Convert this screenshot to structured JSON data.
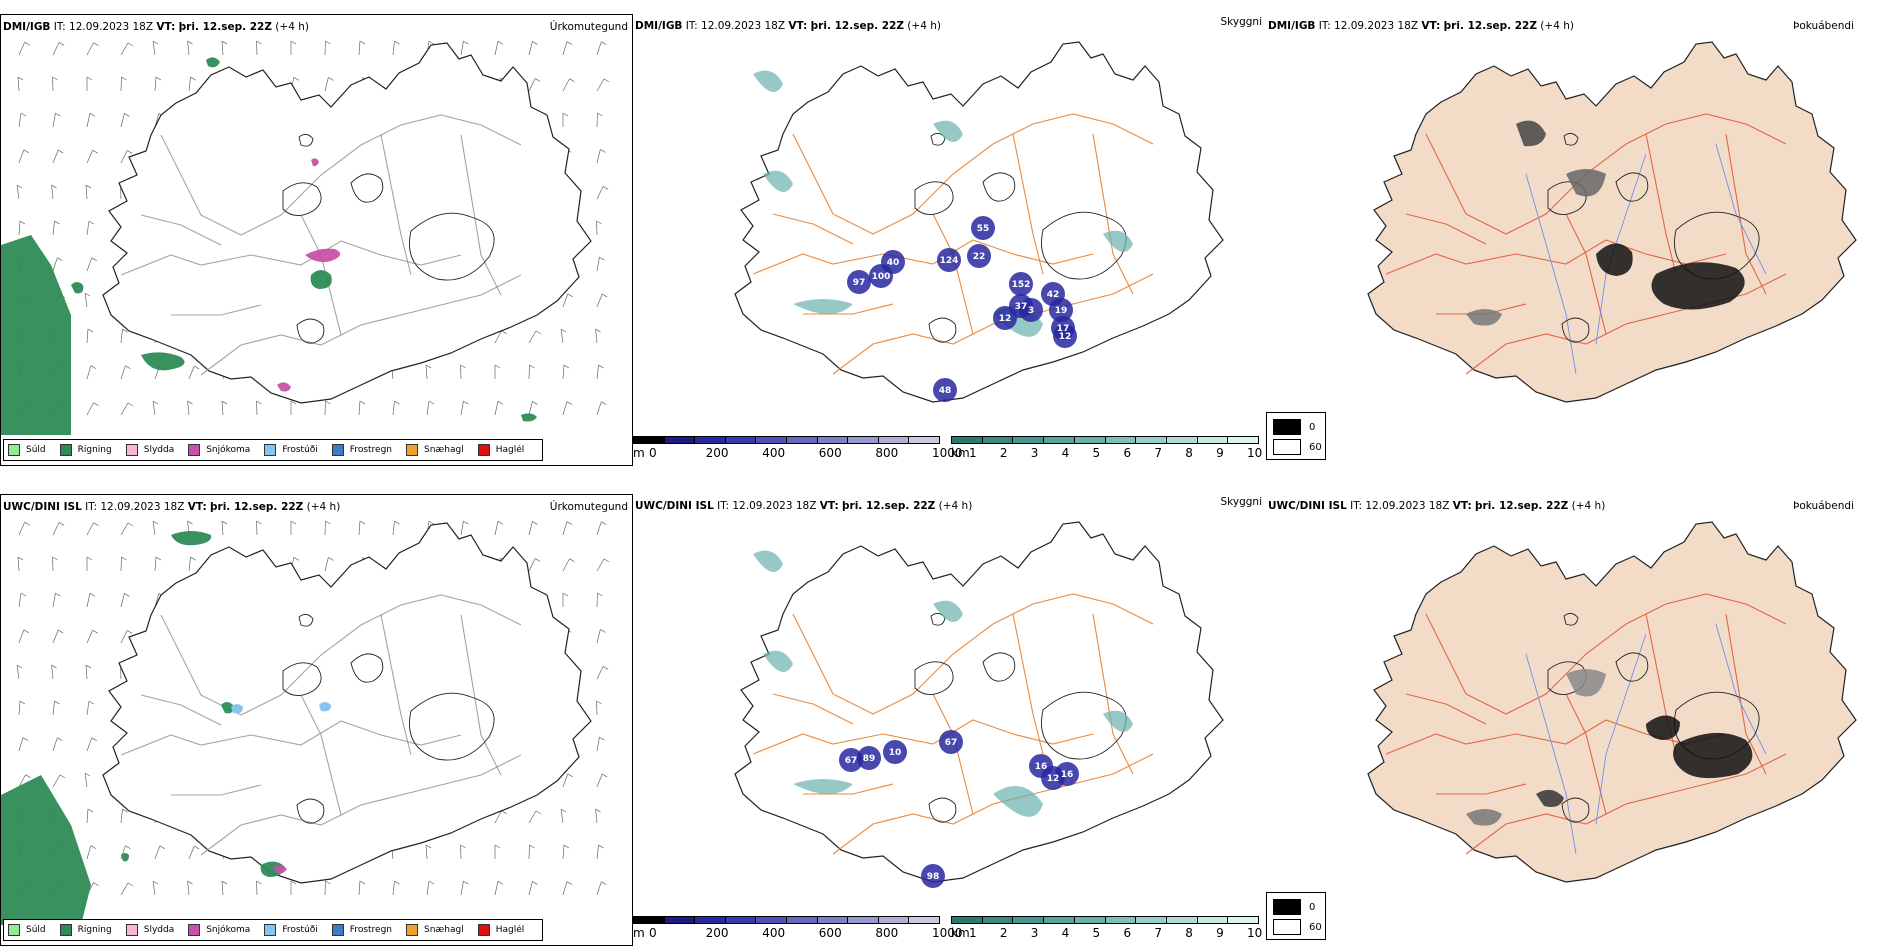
{
  "rows": [
    {
      "source_model": "DMI/IGB",
      "it_label": "IT:",
      "it_time": "12.09.2023 18Z",
      "vt_label": "VT:",
      "vt_time": "þri. 12.sep. 22Z",
      "lead": "(+4 h)",
      "panels": {
        "precip_type": {
          "title": "Úrkomutegund"
        },
        "visibility": {
          "title": "Skyggni",
          "values": [
            "97",
            "100",
            "40",
            "124",
            "22",
            "55",
            "152",
            "37",
            "12",
            "42",
            "3",
            "19",
            "17",
            "12",
            "48"
          ]
        },
        "fog": {
          "title": "Þokuábendi"
        }
      }
    },
    {
      "source_model": "UWC/DINI ISL",
      "it_label": "IT:",
      "it_time": "12.09.2023 18Z",
      "vt_label": "VT:",
      "vt_time": "þri. 12.sep. 22Z",
      "lead": "(+4 h)",
      "panels": {
        "precip_type": {
          "title": "Úrkomutegund"
        },
        "visibility": {
          "title": "Skyggni",
          "values": [
            "67",
            "89",
            "10",
            "67",
            "16",
            "12",
            "16",
            "98"
          ]
        },
        "fog": {
          "title": "Þokuábendi"
        }
      }
    }
  ],
  "precip_legend": [
    {
      "label": "Súld",
      "color": "#90ee90"
    },
    {
      "label": "Rigning",
      "color": "#2e8b57"
    },
    {
      "label": "Slydda",
      "color": "#f4b6d2"
    },
    {
      "label": "Snjókoma",
      "color": "#c850a8"
    },
    {
      "label": "Frostúði",
      "color": "#87c5f0"
    },
    {
      "label": "Frostregn",
      "color": "#3a7cc8"
    },
    {
      "label": "Snæhagl",
      "color": "#f0a030"
    },
    {
      "label": "Haglél",
      "color": "#e01010"
    }
  ],
  "height_scale": {
    "unit": "m",
    "ticks": [
      "0",
      "200",
      "400",
      "600",
      "800",
      "1000"
    ],
    "colors": [
      "#000000",
      "#1a1a80",
      "#2828a0",
      "#3a3ab0",
      "#5050b8",
      "#6868c0",
      "#8080c8",
      "#9898d0",
      "#b0b0d8",
      "#c8c8e0"
    ]
  },
  "vis_scale": {
    "unit": "km",
    "ticks": [
      "1",
      "2",
      "3",
      "4",
      "5",
      "6",
      "7",
      "8",
      "9",
      "10"
    ],
    "colors": [
      "#2a7a70",
      "#3a8880",
      "#4a9690",
      "#5aa49e",
      "#6ab2ac",
      "#80c0ba",
      "#98cec8",
      "#b0dcd6",
      "#c8eae4",
      "#e0f4f2"
    ]
  },
  "fog_legend": [
    {
      "value": "0",
      "color": "#000000"
    },
    {
      "value": "60",
      "color": "#ffffff"
    }
  ],
  "colors": {
    "coastline": "#222222",
    "road": "#e87d2a",
    "river": "#7090e8",
    "land_fog": "#f2dcc8",
    "rain": "#2e8b57",
    "snow": "#c850a8"
  }
}
